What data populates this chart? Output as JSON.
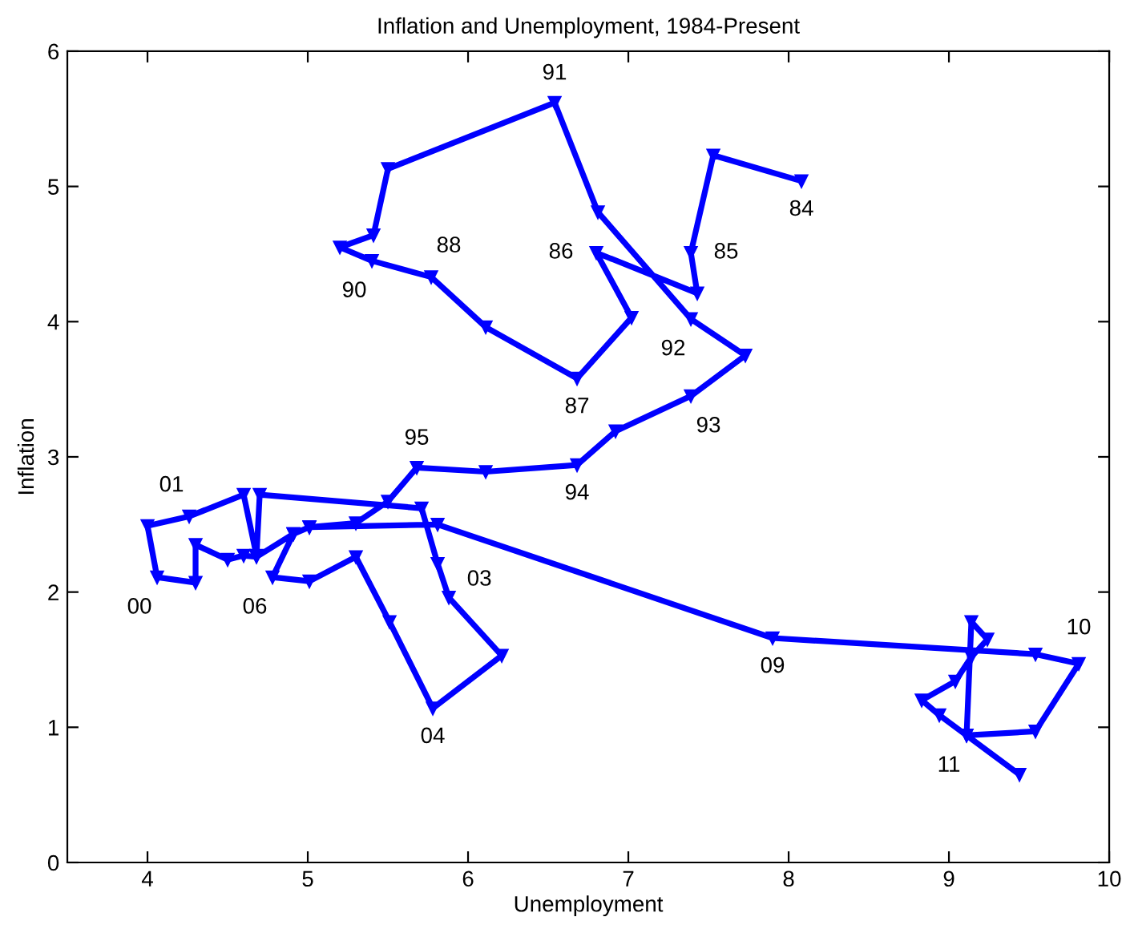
{
  "chart_data": {
    "type": "line",
    "title": "Inflation and Unemployment, 1984-Present",
    "xlabel": "Unemployment",
    "ylabel": "Inflation",
    "xlim": [
      3.5,
      10
    ],
    "xticks": [
      4,
      5,
      6,
      7,
      8,
      9,
      10
    ],
    "ylim": [
      0,
      6
    ],
    "yticks": [
      0,
      1,
      2,
      3,
      4,
      5,
      6
    ],
    "grid": false,
    "marker": "triangle",
    "line_style": "solid",
    "series": [
      {
        "color": "#0000ff",
        "x": [
          8.08,
          7.53,
          7.39,
          7.43,
          6.8,
          7.02,
          6.68,
          6.11,
          5.77,
          5.4,
          5.2,
          5.41,
          5.5,
          6.54,
          6.81,
          7.39,
          7.73,
          7.39,
          6.92,
          6.68,
          6.11,
          5.68,
          5.5,
          5.3,
          5.01,
          4.91,
          4.68,
          4.6,
          4.5,
          4.3,
          4.3,
          4.06,
          4.0,
          4.26,
          4.6,
          4.68,
          4.7,
          5.71,
          5.81,
          5.88,
          6.21,
          5.78,
          5.51,
          5.3,
          5.01,
          4.78,
          4.91,
          5.01,
          5.81,
          7.9,
          9.54,
          9.81,
          9.54,
          9.11,
          9.14,
          9.24,
          9.14,
          9.04,
          8.83,
          8.94,
          9.11,
          9.44
        ],
        "values": [
          5.04,
          5.23,
          4.51,
          4.21,
          4.51,
          4.03,
          3.58,
          3.96,
          4.33,
          4.45,
          4.55,
          4.64,
          5.13,
          5.62,
          4.81,
          4.02,
          3.75,
          3.45,
          3.19,
          2.94,
          2.89,
          2.92,
          2.67,
          2.51,
          2.48,
          2.43,
          2.26,
          2.27,
          2.24,
          2.35,
          2.07,
          2.11,
          2.49,
          2.56,
          2.72,
          2.27,
          2.72,
          2.62,
          2.21,
          1.96,
          1.53,
          1.14,
          1.78,
          2.26,
          2.08,
          2.11,
          2.43,
          2.48,
          2.5,
          1.66,
          1.54,
          1.47,
          0.97,
          0.94,
          1.78,
          1.65,
          1.52,
          1.34,
          1.2,
          1.09,
          0.94,
          0.65
        ]
      }
    ],
    "annotations": [
      {
        "text": "84",
        "x": 8.08,
        "y": 5.04
      },
      {
        "text": "85",
        "x": 7.39,
        "y": 4.51
      },
      {
        "text": "86",
        "x": 6.8,
        "y": 4.51
      },
      {
        "text": "87",
        "x": 6.68,
        "y": 3.58
      },
      {
        "text": "88",
        "x": 5.77,
        "y": 4.33
      },
      {
        "text": "90",
        "x": 5.4,
        "y": 4.45
      },
      {
        "text": "91",
        "x": 6.54,
        "y": 5.62
      },
      {
        "text": "92",
        "x": 7.39,
        "y": 4.02
      },
      {
        "text": "93",
        "x": 7.39,
        "y": 3.45
      },
      {
        "text": "94",
        "x": 6.68,
        "y": 2.94
      },
      {
        "text": "95",
        "x": 5.68,
        "y": 2.92
      },
      {
        "text": "00",
        "x": 4.06,
        "y": 2.11
      },
      {
        "text": "01",
        "x": 4.26,
        "y": 2.56
      },
      {
        "text": "03",
        "x": 5.88,
        "y": 1.96
      },
      {
        "text": "04",
        "x": 5.78,
        "y": 1.14
      },
      {
        "text": "06",
        "x": 4.78,
        "y": 2.11
      },
      {
        "text": "09",
        "x": 7.9,
        "y": 1.66
      },
      {
        "text": "10",
        "x": 9.81,
        "y": 1.47
      },
      {
        "text": "11",
        "x": 9.11,
        "y": 0.94
      }
    ]
  }
}
